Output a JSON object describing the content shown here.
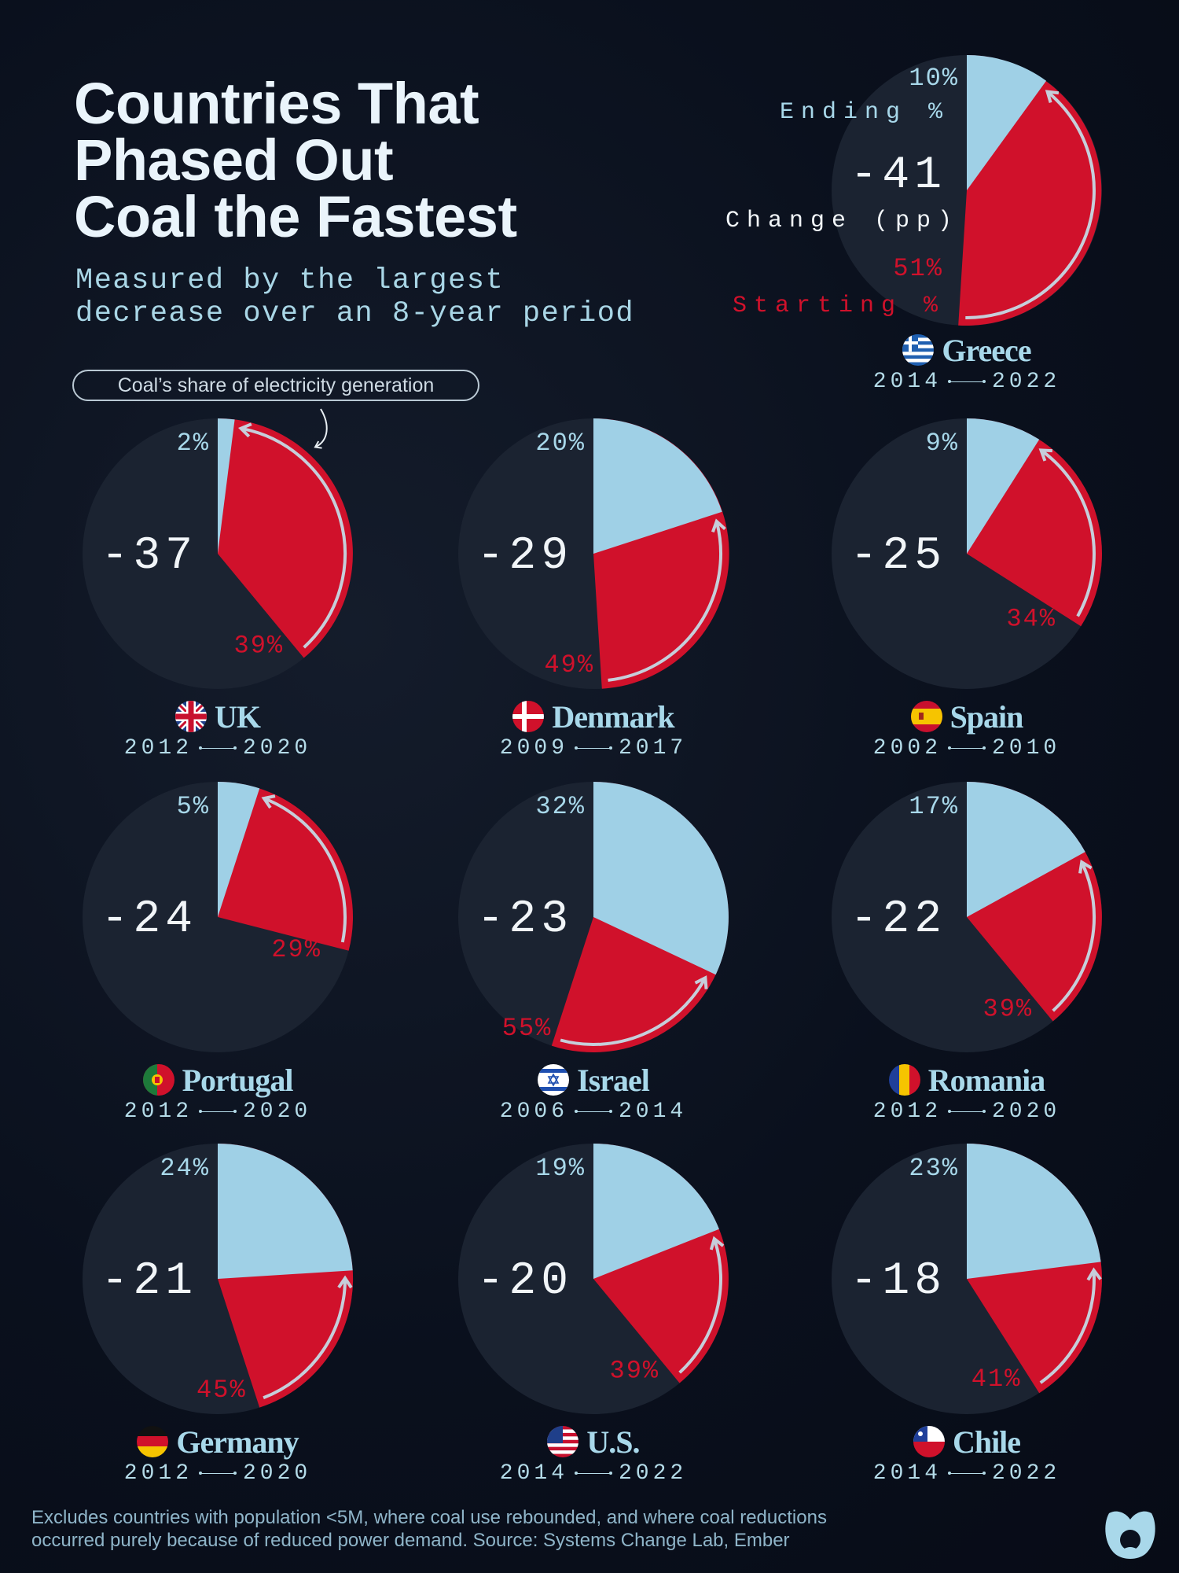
{
  "header": {
    "title_lines": [
      "Countries That",
      "Phased Out",
      "Coal the Fastest"
    ],
    "subtitle_lines": [
      "Measured by the largest",
      "decrease over an 8-year period"
    ],
    "legend_pill": "Coal’s share of electricity generation"
  },
  "legend_labels": {
    "ending": "Ending %",
    "change": "Change (pp)",
    "starting": "Starting %"
  },
  "colors": {
    "background": "#0a101d",
    "pie_base": "#1b2331",
    "ending_share": "#9fd0e6",
    "starting_share": "#d0112b",
    "arrow": "#c6ceda",
    "label_text": "#a8d8ea"
  },
  "chart_data": {
    "type": "pie",
    "unit": "%",
    "countries": [
      {
        "name": "Greece",
        "flag": "flag-greece-icon",
        "start_year": "2014",
        "end_year": "2022",
        "starting_pct": 51,
        "ending_pct": 10,
        "change_pp": -41,
        "start_label": "51%",
        "end_label": "10%",
        "change_label": "-41"
      },
      {
        "name": "UK",
        "flag": "flag-uk-icon",
        "start_year": "2012",
        "end_year": "2020",
        "starting_pct": 39,
        "ending_pct": 2,
        "change_pp": -37,
        "start_label": "39%",
        "end_label": "2%",
        "change_label": "-37"
      },
      {
        "name": "Denmark",
        "flag": "flag-denmark-icon",
        "start_year": "2009",
        "end_year": "2017",
        "starting_pct": 49,
        "ending_pct": 20,
        "change_pp": -29,
        "start_label": "49%",
        "end_label": "20%",
        "change_label": "-29"
      },
      {
        "name": "Spain",
        "flag": "flag-spain-icon",
        "start_year": "2002",
        "end_year": "2010",
        "starting_pct": 34,
        "ending_pct": 9,
        "change_pp": -25,
        "start_label": "34%",
        "end_label": "9%",
        "change_label": "-25"
      },
      {
        "name": "Portugal",
        "flag": "flag-portugal-icon",
        "start_year": "2012",
        "end_year": "2020",
        "starting_pct": 29,
        "ending_pct": 5,
        "change_pp": -24,
        "start_label": "29%",
        "end_label": "5%",
        "change_label": "-24"
      },
      {
        "name": "Israel",
        "flag": "flag-israel-icon",
        "start_year": "2006",
        "end_year": "2014",
        "starting_pct": 55,
        "ending_pct": 32,
        "change_pp": -23,
        "start_label": "55%",
        "end_label": "32%",
        "change_label": "-23"
      },
      {
        "name": "Romania",
        "flag": "flag-romania-icon",
        "start_year": "2012",
        "end_year": "2020",
        "starting_pct": 39,
        "ending_pct": 17,
        "change_pp": -22,
        "start_label": "39%",
        "end_label": "17%",
        "change_label": "-22"
      },
      {
        "name": "Germany",
        "flag": "flag-germany-icon",
        "start_year": "2012",
        "end_year": "2020",
        "starting_pct": 45,
        "ending_pct": 24,
        "change_pp": -21,
        "start_label": "45%",
        "end_label": "24%",
        "change_label": "-21"
      },
      {
        "name": "U.S.",
        "flag": "flag-us-icon",
        "start_year": "2014",
        "end_year": "2022",
        "starting_pct": 39,
        "ending_pct": 19,
        "change_pp": -20,
        "start_label": "39%",
        "end_label": "19%",
        "change_label": "-20"
      },
      {
        "name": "Chile",
        "flag": "flag-chile-icon",
        "start_year": "2014",
        "end_year": "2022",
        "starting_pct": 41,
        "ending_pct": 23,
        "change_pp": -18,
        "start_label": "41%",
        "end_label": "23%",
        "change_label": "-18"
      }
    ]
  },
  "footer": {
    "note_lines": [
      "Excludes countries with population <5M, where coal use rebounded, and where coal reductions",
      "occurred purely because of reduced power demand. Source: Systems Change Lab, Ember"
    ],
    "logo": "visual-capitalist-logo-icon"
  }
}
